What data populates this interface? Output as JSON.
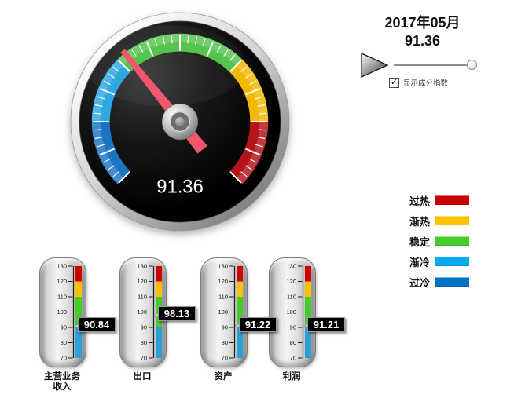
{
  "header": {
    "period": "2017年05月",
    "value_display": "91.36"
  },
  "controls": {
    "play_icon": "play",
    "checkbox_label": "显示成分指数",
    "checkbox_checked": true,
    "checkbox_glyph": "✓",
    "slider_position": 1.0
  },
  "gauge": {
    "value": 91.36,
    "display": "91.36",
    "min": 70,
    "max": 130,
    "start_angle": -135,
    "end_angle": 135,
    "needle_color": "#F2566E",
    "segments": [
      {
        "label": "过冷",
        "from": 70,
        "to": 80,
        "color": "#1B74C4"
      },
      {
        "label": "渐冷",
        "from": 80,
        "to": 90,
        "color": "#2EA8E0"
      },
      {
        "label": "稳定",
        "from": 90,
        "to": 110,
        "color": "#55C44E"
      },
      {
        "label": "渐热",
        "from": 110,
        "to": 120,
        "color": "#F3B800"
      },
      {
        "label": "过热",
        "from": 120,
        "to": 130,
        "color": "#B41318"
      }
    ]
  },
  "legend": {
    "items": [
      {
        "label": "过热",
        "color": "#C80000"
      },
      {
        "label": "渐热",
        "color": "#FFC200"
      },
      {
        "label": "稳定",
        "color": "#47CE2E"
      },
      {
        "label": "渐冷",
        "color": "#00AEF0"
      },
      {
        "label": "过冷",
        "color": "#0072C6"
      }
    ]
  },
  "thermometers": {
    "min": 70,
    "max": 130,
    "ticks": [
      70,
      80,
      90,
      100,
      110,
      120,
      130
    ],
    "bands": [
      {
        "from": 120,
        "to": 130,
        "color": "#CC0000"
      },
      {
        "from": 110,
        "to": 120,
        "color": "#FFC000"
      },
      {
        "from": 90,
        "to": 110,
        "color": "#44CC2C"
      },
      {
        "from": 70,
        "to": 90,
        "color": "#2B9FD7"
      }
    ],
    "items": [
      {
        "label": "主营业务收入",
        "value": 90.84,
        "display": "90.84"
      },
      {
        "label": "出口",
        "value": 98.13,
        "display": "98.13"
      },
      {
        "label": "资产",
        "value": 91.22,
        "display": "91.22"
      },
      {
        "label": "利润",
        "value": 91.21,
        "display": "91.21"
      }
    ]
  },
  "chart_data": [
    {
      "type": "gauge",
      "title": "2017年05月",
      "value": 91.36,
      "min": 70,
      "max": 130,
      "zones": [
        {
          "label": "过冷",
          "from": 70,
          "to": 80
        },
        {
          "label": "渐冷",
          "from": 80,
          "to": 90
        },
        {
          "label": "稳定",
          "from": 90,
          "to": 110
        },
        {
          "label": "渐热",
          "from": 110,
          "to": 120
        },
        {
          "label": "过热",
          "from": 120,
          "to": 130
        }
      ]
    },
    {
      "type": "bar",
      "subtype": "thermometer-bullet",
      "categories": [
        "主营业务收入",
        "出口",
        "资产",
        "利润"
      ],
      "values": [
        90.84,
        98.13,
        91.22,
        91.21
      ],
      "ylim": [
        70,
        130
      ],
      "zones": [
        {
          "label": "渐冷/过冷",
          "from": 70,
          "to": 90
        },
        {
          "label": "稳定",
          "from": 90,
          "to": 110
        },
        {
          "label": "渐热",
          "from": 110,
          "to": 120
        },
        {
          "label": "过热",
          "from": 120,
          "to": 130
        }
      ]
    }
  ]
}
